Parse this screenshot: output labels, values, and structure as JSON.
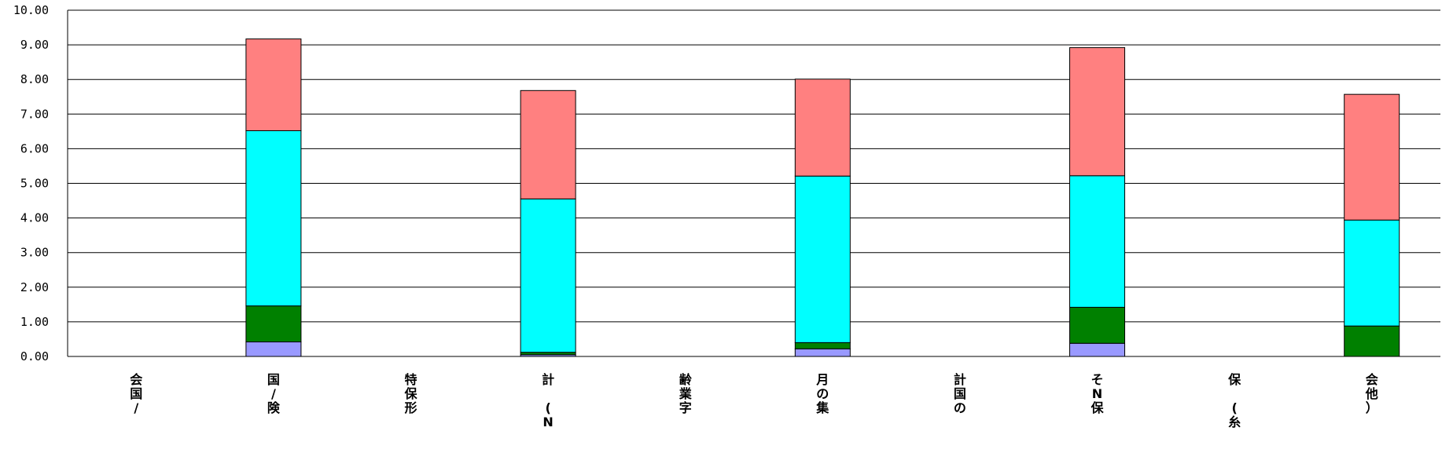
{
  "chart_data": {
    "type": "bar",
    "stacked": true,
    "title": "",
    "xlabel": "",
    "ylabel": "",
    "ylim": [
      0,
      10
    ],
    "y_ticks": [
      "0.00",
      "1.00",
      "2.00",
      "3.00",
      "4.00",
      "5.00",
      "6.00",
      "7.00",
      "8.00",
      "9.00",
      "10.00"
    ],
    "grid": "horizontal",
    "legend": "none",
    "categories": [
      "会国/",
      "国/険",
      "特保形",
      "計 (N",
      "齢業字",
      "月の集",
      "計国の",
      "そN保",
      "保 (糸",
      "会他）"
    ],
    "series": [
      {
        "color": "#9999ff",
        "values": [
          0,
          0.42,
          0,
          0.05,
          0,
          0.22,
          0,
          0.38,
          0,
          0
        ]
      },
      {
        "color": "#008000",
        "values": [
          0,
          1.04,
          0,
          0.07,
          0,
          0.18,
          0,
          1.04,
          0,
          0.88
        ]
      },
      {
        "color": "#00ffff",
        "values": [
          0,
          5.06,
          0,
          4.43,
          0,
          4.81,
          0,
          3.8,
          0,
          3.06
        ]
      },
      {
        "color": "#ff8080",
        "values": [
          0,
          2.65,
          0,
          3.13,
          0,
          2.8,
          0,
          3.7,
          0,
          3.63
        ]
      }
    ]
  }
}
